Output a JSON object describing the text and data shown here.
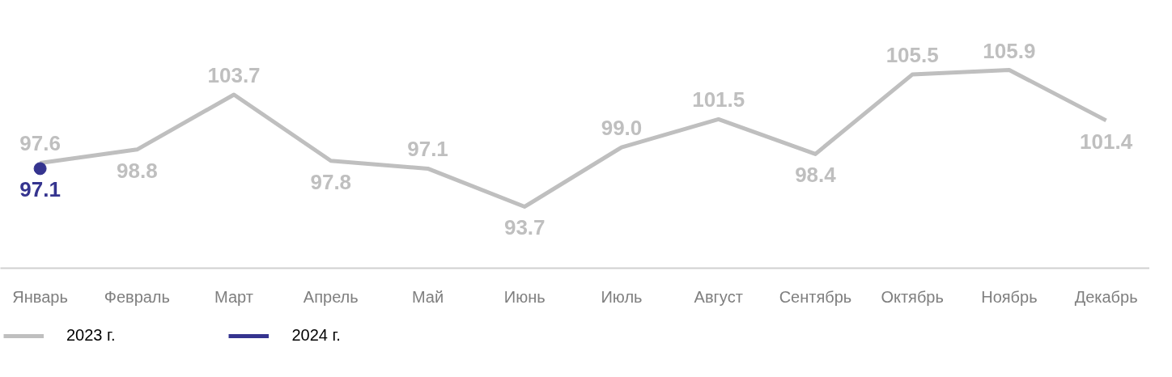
{
  "chart_data": {
    "type": "line",
    "categories": [
      "Январь",
      "Февраль",
      "Март",
      "Апрель",
      "Май",
      "Июнь",
      "Июль",
      "Август",
      "Сентябрь",
      "Октябрь",
      "Ноябрь",
      "Декабрь"
    ],
    "series": [
      {
        "name": "2023 г.",
        "color": "#bfbfbf",
        "values": [
          97.6,
          98.8,
          103.7,
          97.8,
          97.1,
          93.7,
          99.0,
          101.5,
          98.4,
          105.5,
          105.9,
          101.4
        ],
        "value_labels": [
          "97.6",
          "98.8",
          "103.7",
          "97.8",
          "97.1",
          "93.7",
          "99.0",
          "101.5",
          "98.4",
          "105.5",
          "105.9",
          "101.4"
        ]
      },
      {
        "name": "2024 г.",
        "color": "#35348f",
        "marker": "circle",
        "values": [
          97.1,
          null,
          null,
          null,
          null,
          null,
          null,
          null,
          null,
          null,
          null,
          null
        ],
        "value_labels": [
          "97.1",
          null,
          null,
          null,
          null,
          null,
          null,
          null,
          null,
          null,
          null,
          null
        ]
      }
    ],
    "grid": false,
    "legend": "bottom left",
    "tick_labels": "x",
    "line_style": "solid"
  }
}
